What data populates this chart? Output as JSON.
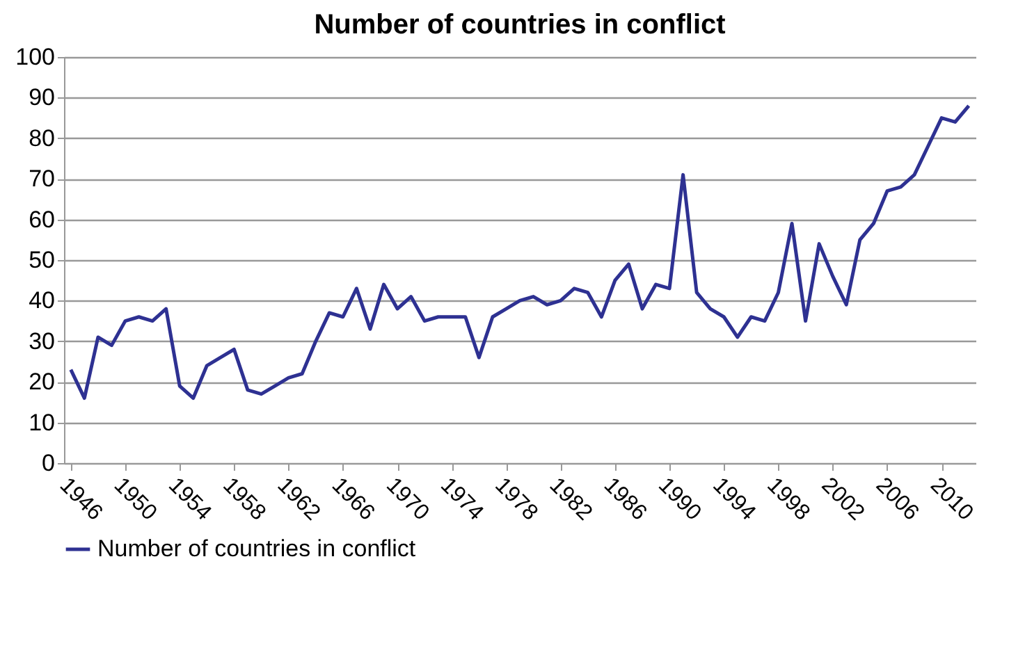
{
  "chart_data": {
    "type": "line",
    "title": "Number of countries in conflict",
    "x": [
      1946,
      1947,
      1948,
      1949,
      1950,
      1951,
      1952,
      1953,
      1954,
      1955,
      1956,
      1957,
      1958,
      1959,
      1960,
      1961,
      1962,
      1963,
      1964,
      1965,
      1966,
      1967,
      1968,
      1969,
      1970,
      1971,
      1972,
      1973,
      1974,
      1975,
      1976,
      1977,
      1978,
      1979,
      1980,
      1981,
      1982,
      1983,
      1984,
      1985,
      1986,
      1987,
      1988,
      1989,
      1990,
      1991,
      1992,
      1993,
      1994,
      1995,
      1996,
      1997,
      1998,
      1999,
      2000,
      2001,
      2002,
      2003,
      2004,
      2005,
      2006,
      2007,
      2008,
      2009,
      2010,
      2011,
      2012
    ],
    "series": [
      {
        "name": "Number of countries in conflict",
        "color": "#2e3192",
        "values": [
          23,
          16,
          31,
          29,
          35,
          36,
          35,
          38,
          19,
          16,
          24,
          26,
          28,
          18,
          17,
          19,
          21,
          22,
          30,
          37,
          36,
          43,
          33,
          44,
          38,
          41,
          35,
          36,
          36,
          36,
          26,
          36,
          38,
          40,
          41,
          39,
          40,
          43,
          42,
          36,
          45,
          49,
          38,
          44,
          43,
          71,
          42,
          38,
          36,
          31,
          36,
          35,
          42,
          59,
          35,
          54,
          46,
          39,
          55,
          59,
          67,
          68,
          71,
          78,
          85,
          84,
          88
        ]
      }
    ],
    "xlim": [
      1945.5,
      2012.5
    ],
    "xticks": [
      1946,
      1950,
      1954,
      1958,
      1962,
      1966,
      1970,
      1974,
      1978,
      1982,
      1986,
      1990,
      1994,
      1998,
      2002,
      2006,
      2010
    ],
    "ylim": [
      0,
      100
    ],
    "yticks": [
      0,
      10,
      20,
      30,
      40,
      50,
      60,
      70,
      80,
      90,
      100
    ],
    "grid": "y",
    "legend": "bottom",
    "marker": "none",
    "line_style": "solid"
  }
}
